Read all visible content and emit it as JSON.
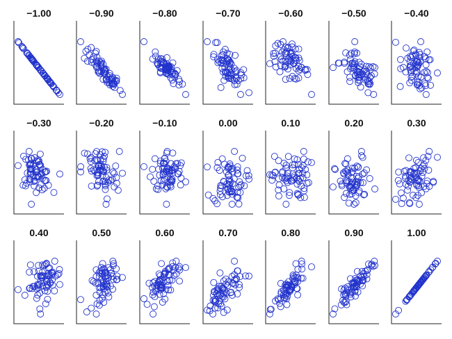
{
  "chart_data": {
    "type": "scatter",
    "grid": false,
    "legend": "none",
    "marker": "open-circle",
    "point_color": "#2233cc",
    "axis_color": "#222222",
    "panels": [
      {
        "title": "−1.00",
        "r": -1.0
      },
      {
        "title": "−0.90",
        "r": -0.9
      },
      {
        "title": "−0.80",
        "r": -0.8
      },
      {
        "title": "−0.70",
        "r": -0.7
      },
      {
        "title": "−0.60",
        "r": -0.6
      },
      {
        "title": "−0.50",
        "r": -0.5
      },
      {
        "title": "−0.40",
        "r": -0.4
      },
      {
        "title": "−0.30",
        "r": -0.3
      },
      {
        "title": "−0.20",
        "r": -0.2
      },
      {
        "title": "−0.10",
        "r": -0.1
      },
      {
        "title": "0.00",
        "r": 0.0
      },
      {
        "title": "0.10",
        "r": 0.1
      },
      {
        "title": "0.20",
        "r": 0.2
      },
      {
        "title": "0.30",
        "r": 0.3
      },
      {
        "title": "0.40",
        "r": 0.4
      },
      {
        "title": "0.50",
        "r": 0.5
      },
      {
        "title": "0.60",
        "r": 0.6
      },
      {
        "title": "0.70",
        "r": 0.7
      },
      {
        "title": "0.80",
        "r": 0.8
      },
      {
        "title": "0.90",
        "r": 0.9
      },
      {
        "title": "1.00",
        "r": 1.0
      }
    ]
  }
}
